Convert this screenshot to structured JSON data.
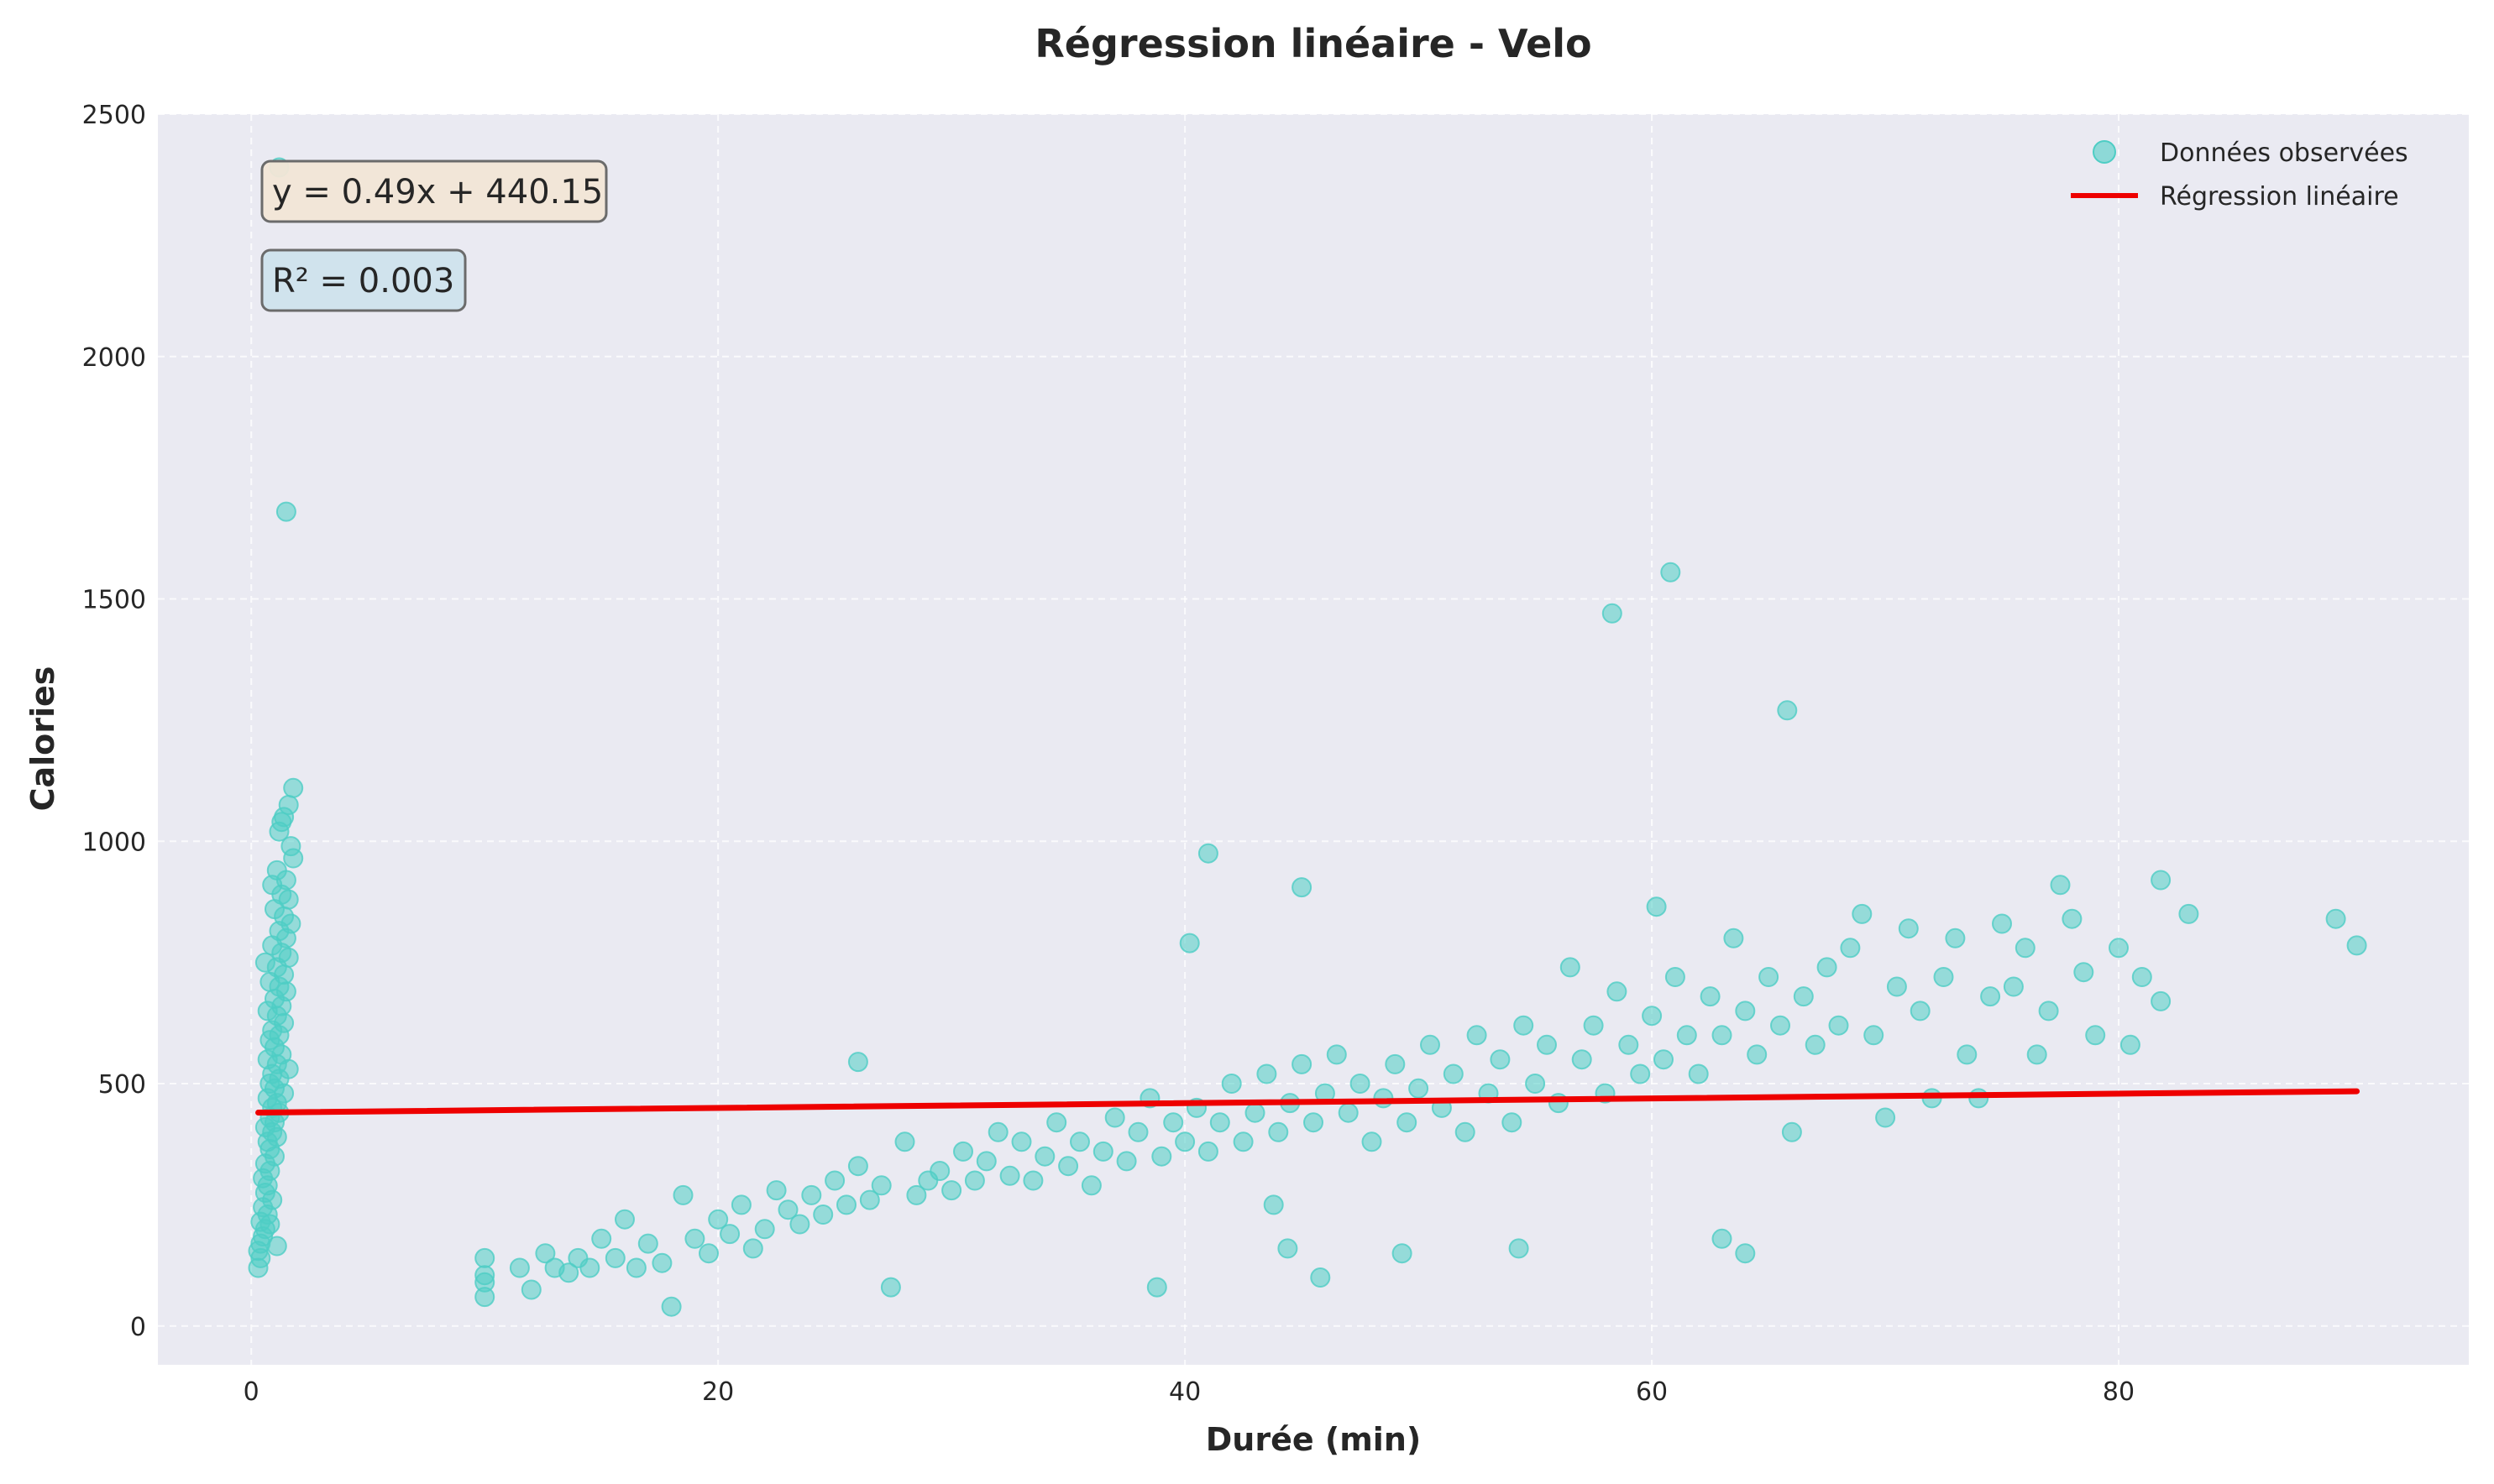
{
  "chart_data": {
    "type": "scatter",
    "title": "Régression linéaire - Velo",
    "xlabel": "Durée (min)",
    "ylabel": "Calories",
    "xlim": [
      -4,
      95
    ],
    "ylim": [
      -80,
      2500
    ],
    "x_ticks": [
      0,
      20,
      40,
      60,
      80
    ],
    "y_ticks": [
      0,
      500,
      1000,
      1500,
      2000,
      2500
    ],
    "grid": true,
    "legend_position": "top-right",
    "colors": {
      "scatter": "#4ecdc4",
      "regression": "#ee0000",
      "background": "#eaeaf2"
    },
    "annotations": [
      {
        "text": "y = 0.49x + 440.15",
        "fill": "#f2e6d6"
      },
      {
        "text": "R² = 0.003",
        "fill": "#cfe3ec"
      }
    ],
    "series": [
      {
        "name": "Données observées",
        "kind": "scatter",
        "points": [
          [
            1.2,
            2390
          ],
          [
            1.5,
            1680
          ],
          [
            1.8,
            1110
          ],
          [
            1.6,
            1075
          ],
          [
            1.4,
            1050
          ],
          [
            1.3,
            1040
          ],
          [
            1.2,
            1020
          ],
          [
            1.7,
            990
          ],
          [
            1.8,
            965
          ],
          [
            1.1,
            940
          ],
          [
            1.5,
            920
          ],
          [
            0.9,
            910
          ],
          [
            1.3,
            890
          ],
          [
            1.6,
            880
          ],
          [
            1.0,
            860
          ],
          [
            1.4,
            845
          ],
          [
            1.7,
            830
          ],
          [
            1.2,
            815
          ],
          [
            1.5,
            800
          ],
          [
            0.9,
            785
          ],
          [
            1.3,
            770
          ],
          [
            1.6,
            760
          ],
          [
            0.6,
            750
          ],
          [
            1.1,
            740
          ],
          [
            1.4,
            725
          ],
          [
            0.8,
            710
          ],
          [
            1.2,
            700
          ],
          [
            1.5,
            690
          ],
          [
            1.0,
            675
          ],
          [
            1.3,
            660
          ],
          [
            0.7,
            650
          ],
          [
            1.1,
            640
          ],
          [
            1.4,
            625
          ],
          [
            0.9,
            610
          ],
          [
            1.2,
            600
          ],
          [
            0.8,
            590
          ],
          [
            1.0,
            575
          ],
          [
            1.3,
            560
          ],
          [
            0.7,
            550
          ],
          [
            1.1,
            540
          ],
          [
            1.6,
            530
          ],
          [
            0.9,
            520
          ],
          [
            1.2,
            510
          ],
          [
            0.8,
            500
          ],
          [
            1.0,
            490
          ],
          [
            1.4,
            480
          ],
          [
            0.7,
            470
          ],
          [
            1.1,
            460
          ],
          [
            0.9,
            450
          ],
          [
            1.2,
            440
          ],
          [
            0.8,
            430
          ],
          [
            1.0,
            420
          ],
          [
            0.6,
            410
          ],
          [
            0.9,
            400
          ],
          [
            1.1,
            390
          ],
          [
            0.7,
            380
          ],
          [
            0.8,
            365
          ],
          [
            1.0,
            350
          ],
          [
            0.6,
            335
          ],
          [
            0.8,
            320
          ],
          [
            0.5,
            305
          ],
          [
            0.7,
            290
          ],
          [
            0.6,
            275
          ],
          [
            0.9,
            260
          ],
          [
            0.5,
            245
          ],
          [
            0.7,
            230
          ],
          [
            0.4,
            215
          ],
          [
            0.6,
            200
          ],
          [
            0.5,
            185
          ],
          [
            0.4,
            170
          ],
          [
            0.3,
            155
          ],
          [
            0.4,
            140
          ],
          [
            0.3,
            120
          ],
          [
            1.1,
            165
          ],
          [
            0.8,
            210
          ],
          [
            10,
            140
          ],
          [
            10,
            105
          ],
          [
            10,
            90
          ],
          [
            10,
            60
          ],
          [
            11.5,
            120
          ],
          [
            12,
            75
          ],
          [
            12.6,
            150
          ],
          [
            13,
            120
          ],
          [
            13.6,
            110
          ],
          [
            14,
            140
          ],
          [
            14.5,
            120
          ],
          [
            15,
            180
          ],
          [
            15.6,
            140
          ],
          [
            16,
            220
          ],
          [
            16.5,
            120
          ],
          [
            17,
            170
          ],
          [
            17.6,
            130
          ],
          [
            18,
            40
          ],
          [
            18.5,
            270
          ],
          [
            19,
            180
          ],
          [
            19.6,
            150
          ],
          [
            20,
            220
          ],
          [
            20.5,
            190
          ],
          [
            21,
            250
          ],
          [
            21.5,
            160
          ],
          [
            22,
            200
          ],
          [
            22.5,
            280
          ],
          [
            23,
            240
          ],
          [
            23.5,
            210
          ],
          [
            24,
            270
          ],
          [
            24.5,
            230
          ],
          [
            25,
            300
          ],
          [
            25.5,
            250
          ],
          [
            26,
            545
          ],
          [
            26,
            330
          ],
          [
            26.5,
            260
          ],
          [
            27,
            290
          ],
          [
            27.4,
            80
          ],
          [
            28,
            380
          ],
          [
            28.5,
            270
          ],
          [
            29,
            300
          ],
          [
            29.5,
            320
          ],
          [
            30,
            280
          ],
          [
            30.5,
            360
          ],
          [
            31,
            300
          ],
          [
            31.5,
            340
          ],
          [
            32,
            400
          ],
          [
            32.5,
            310
          ],
          [
            33,
            380
          ],
          [
            33.5,
            300
          ],
          [
            34,
            350
          ],
          [
            34.5,
            420
          ],
          [
            35,
            330
          ],
          [
            35.5,
            380
          ],
          [
            36,
            290
          ],
          [
            36.5,
            360
          ],
          [
            37,
            430
          ],
          [
            37.5,
            340
          ],
          [
            38,
            400
          ],
          [
            38.5,
            470
          ],
          [
            38.8,
            80
          ],
          [
            39,
            350
          ],
          [
            39.5,
            420
          ],
          [
            40,
            380
          ],
          [
            40.2,
            790
          ],
          [
            40.5,
            450
          ],
          [
            41,
            975
          ],
          [
            41,
            360
          ],
          [
            41.5,
            420
          ],
          [
            42,
            500
          ],
          [
            42.5,
            380
          ],
          [
            43,
            440
          ],
          [
            43.5,
            520
          ],
          [
            43.8,
            250
          ],
          [
            44,
            400
          ],
          [
            44.5,
            460
          ],
          [
            44.4,
            160
          ],
          [
            45,
            905
          ],
          [
            45,
            540
          ],
          [
            45.5,
            420
          ],
          [
            45.8,
            100
          ],
          [
            46,
            480
          ],
          [
            46.5,
            560
          ],
          [
            47,
            440
          ],
          [
            47.5,
            500
          ],
          [
            48,
            380
          ],
          [
            48.5,
            470
          ],
          [
            49,
            540
          ],
          [
            49.3,
            150
          ],
          [
            49.5,
            420
          ],
          [
            50,
            490
          ],
          [
            50.5,
            580
          ],
          [
            51,
            450
          ],
          [
            51.5,
            520
          ],
          [
            52,
            400
          ],
          [
            52.5,
            600
          ],
          [
            53,
            480
          ],
          [
            53.5,
            550
          ],
          [
            54,
            420
          ],
          [
            54.3,
            160
          ],
          [
            54.5,
            620
          ],
          [
            55,
            500
          ],
          [
            55.5,
            580
          ],
          [
            56,
            460
          ],
          [
            56.5,
            740
          ],
          [
            57,
            550
          ],
          [
            57.5,
            620
          ],
          [
            58,
            480
          ],
          [
            58.3,
            1470
          ],
          [
            58.5,
            690
          ],
          [
            59,
            580
          ],
          [
            59.5,
            520
          ],
          [
            60,
            640
          ],
          [
            60.2,
            865
          ],
          [
            60.5,
            550
          ],
          [
            60.8,
            1555
          ],
          [
            61,
            720
          ],
          [
            61.5,
            600
          ],
          [
            62,
            520
          ],
          [
            62.5,
            680
          ],
          [
            63,
            180
          ],
          [
            63,
            600
          ],
          [
            63.5,
            800
          ],
          [
            64,
            150
          ],
          [
            64,
            650
          ],
          [
            64.5,
            560
          ],
          [
            65,
            720
          ],
          [
            65.5,
            620
          ],
          [
            65.8,
            1270
          ],
          [
            66,
            400
          ],
          [
            66.5,
            680
          ],
          [
            67,
            580
          ],
          [
            67.5,
            740
          ],
          [
            68,
            620
          ],
          [
            68.5,
            780
          ],
          [
            69,
            850
          ],
          [
            69.5,
            600
          ],
          [
            70,
            430
          ],
          [
            70.5,
            700
          ],
          [
            71,
            820
          ],
          [
            71.5,
            650
          ],
          [
            72,
            470
          ],
          [
            72.5,
            720
          ],
          [
            73,
            800
          ],
          [
            73.5,
            560
          ],
          [
            74,
            470
          ],
          [
            74.5,
            680
          ],
          [
            75,
            830
          ],
          [
            75.5,
            700
          ],
          [
            76,
            780
          ],
          [
            76.5,
            560
          ],
          [
            77,
            650
          ],
          [
            77.5,
            910
          ],
          [
            78,
            840
          ],
          [
            78.5,
            730
          ],
          [
            79,
            600
          ],
          [
            80,
            780
          ],
          [
            80.5,
            580
          ],
          [
            81,
            720
          ],
          [
            81.8,
            920
          ],
          [
            81.8,
            670
          ],
          [
            83,
            850
          ],
          [
            89.3,
            840
          ],
          [
            90.2,
            785
          ]
        ]
      },
      {
        "name": "Régression linéaire",
        "kind": "line",
        "slope": 0.49,
        "intercept": 440.15,
        "x_range": [
          0.3,
          90.2
        ]
      }
    ]
  }
}
